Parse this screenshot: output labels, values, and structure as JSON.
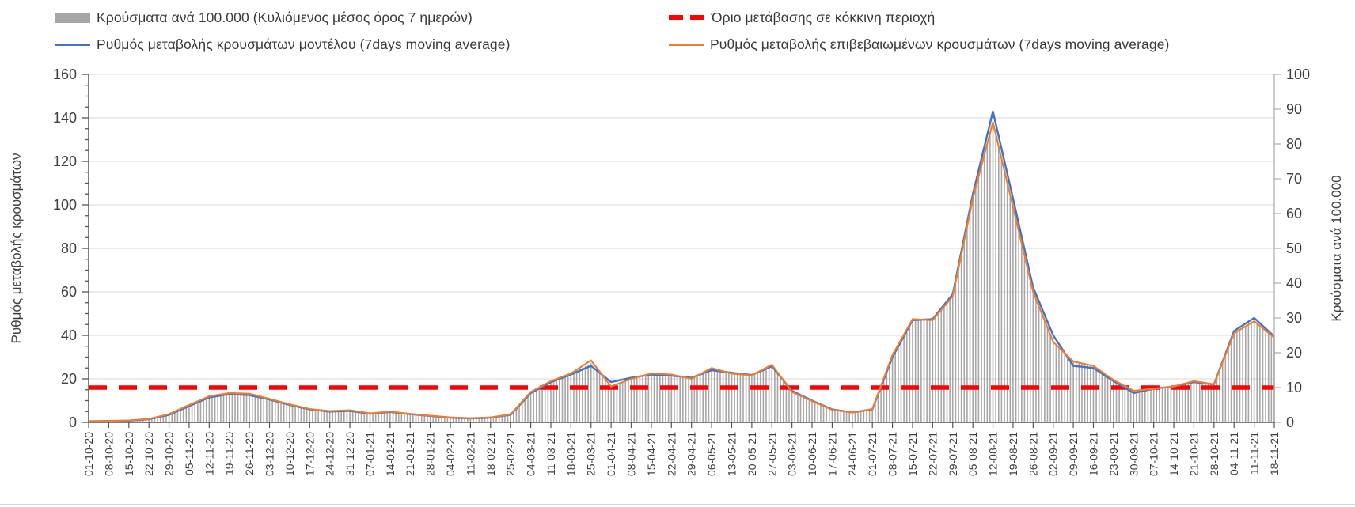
{
  "legend": {
    "items": [
      {
        "label": "Κρούσματα ανά 100.000 (Κυλιόμενος μέσος όρος 7 ημερών)",
        "swatch": "gray-bar-swatch",
        "color": "#A6A6A6"
      },
      {
        "label": "Όριο μετάβασης σε κόκκινη περιοχή",
        "swatch": "red-dashed-swatch",
        "color": "#FF0000"
      },
      {
        "label": "Ρυθμός μεταβολής κρουσμάτων μοντέλου (7days moving average)",
        "swatch": "blue-line-swatch",
        "color": "#4472C4"
      },
      {
        "label": "Ρυθμός μεταβολής επιβεβαιωμένων κρουσμάτων (7days moving average)",
        "swatch": "orange-line-swatch",
        "color": "#ED7D31"
      }
    ]
  },
  "chart_data": {
    "type": "bar",
    "subtype": "combo-bar-line",
    "title": "",
    "grid": "horizontal-on",
    "legend_position": "top",
    "categories": [
      "01-10-20",
      "08-10-20",
      "15-10-20",
      "22-10-20",
      "29-10-20",
      "05-11-20",
      "12-11-20",
      "19-11-20",
      "26-11-20",
      "03-12-20",
      "10-12-20",
      "17-12-20",
      "24-12-20",
      "31-12-20",
      "07-01-21",
      "14-01-21",
      "21-01-21",
      "28-01-21",
      "04-02-21",
      "11-02-21",
      "18-02-21",
      "25-02-21",
      "04-03-21",
      "11-03-21",
      "18-03-21",
      "25-03-21",
      "01-04-21",
      "08-04-21",
      "15-04-21",
      "22-04-21",
      "29-04-21",
      "06-05-21",
      "13-05-21",
      "20-05-21",
      "27-05-21",
      "03-06-21",
      "10-06-21",
      "17-06-21",
      "24-06-21",
      "01-07-21",
      "08-07-21",
      "15-07-21",
      "22-07-21",
      "29-07-21",
      "05-08-21",
      "12-08-21",
      "19-08-21",
      "26-08-21",
      "02-09-21",
      "09-09-21",
      "16-09-21",
      "23-09-21",
      "30-09-21",
      "07-10-21",
      "14-10-21",
      "21-10-21",
      "28-10-21",
      "04-11-21",
      "11-11-21",
      "18-11-21"
    ],
    "series": [
      {
        "name": "Κρούσματα ανά 100.000 (Κυλιόμενος μέσος όρος 7 ημερών)",
        "type": "bar",
        "axis": "right",
        "color": "#A6A6A6",
        "values": [
          0.3,
          0.4,
          0.6,
          1.0,
          2.4,
          5.0,
          7.5,
          8.4,
          8.2,
          6.7,
          5.2,
          3.9,
          3.2,
          3.5,
          2.6,
          3.1,
          2.4,
          1.9,
          1.4,
          1.2,
          1.4,
          2.3,
          8.8,
          11.9,
          14.1,
          17.0,
          10.3,
          12.5,
          14.1,
          13.8,
          12.5,
          15.6,
          14.0,
          13.5,
          16.6,
          8.8,
          6.1,
          3.6,
          2.8,
          3.9,
          19.4,
          29.7,
          29.4,
          36.3,
          64.4,
          86.3,
          61.9,
          37.5,
          23.1,
          17.5,
          16.3,
          12.2,
          9.1,
          9.7,
          10.3,
          11.9,
          10.9,
          25.6,
          29.1,
          24.4
        ]
      },
      {
        "name": "Ρυθμός μεταβολής κρουσμάτων μοντέλου (7days moving average)",
        "type": "line",
        "axis": "left",
        "color": "#4472C4",
        "values": [
          0.5,
          0.6,
          0.8,
          1.5,
          3.5,
          7.5,
          11.5,
          13.0,
          12.5,
          10.5,
          8.0,
          6.0,
          5.0,
          5.3,
          4.0,
          4.8,
          3.8,
          3.0,
          2.2,
          1.8,
          2.2,
          3.5,
          13.5,
          18.5,
          22.0,
          26.0,
          18.5,
          20.5,
          22.0,
          21.5,
          20.5,
          24.0,
          22.8,
          21.8,
          25.8,
          14.5,
          10.0,
          6.0,
          4.6,
          6.0,
          30.0,
          47.0,
          47.5,
          59.0,
          105.0,
          143.0,
          103.0,
          62.0,
          40.0,
          26.0,
          25.0,
          19.0,
          13.5,
          15.5,
          16.5,
          18.5,
          17.5,
          42.0,
          48.0,
          39.5
        ]
      },
      {
        "name": "Ρυθμός μεταβολής επιβεβαιωμένων κρουσμάτων (7days moving average)",
        "type": "line",
        "axis": "left",
        "color": "#ED7D31",
        "values": [
          0.5,
          0.7,
          0.9,
          1.6,
          3.8,
          8.0,
          12.0,
          13.5,
          13.2,
          10.8,
          8.3,
          6.2,
          5.2,
          5.6,
          4.2,
          5.0,
          3.9,
          3.1,
          2.3,
          1.9,
          2.3,
          3.7,
          14.0,
          19.0,
          22.5,
          28.5,
          16.5,
          20.0,
          22.5,
          22.0,
          20.0,
          25.0,
          22.4,
          21.6,
          26.5,
          14.0,
          9.8,
          5.8,
          4.5,
          6.2,
          31.0,
          47.5,
          47.0,
          58.0,
          103.0,
          138.0,
          99.0,
          60.0,
          37.0,
          28.0,
          26.0,
          19.5,
          14.5,
          15.5,
          16.5,
          19.0,
          17.5,
          41.0,
          46.5,
          39.0
        ]
      }
    ],
    "threshold": {
      "name": "Όριο μετάβασης σε κόκκινη περιοχή",
      "value_left_axis": 16,
      "value_right_axis": 10,
      "color": "#FF0000",
      "style": "dashed"
    },
    "axes": {
      "left": {
        "label": "Ρυθμός μεταβολής κρουσμάτων",
        "min": 0,
        "max": 160,
        "step": 20,
        "minor_step": 5
      },
      "right": {
        "label": "Κρούσματα ανά 100.000",
        "min": 0,
        "max": 100,
        "step": 10
      },
      "x": {
        "tick_interval_days": 7
      }
    },
    "colors": {
      "grid": "#D9D9D9",
      "axis_dark": "#555555",
      "axis_light": "#ABABAB",
      "text": "#404040"
    }
  }
}
